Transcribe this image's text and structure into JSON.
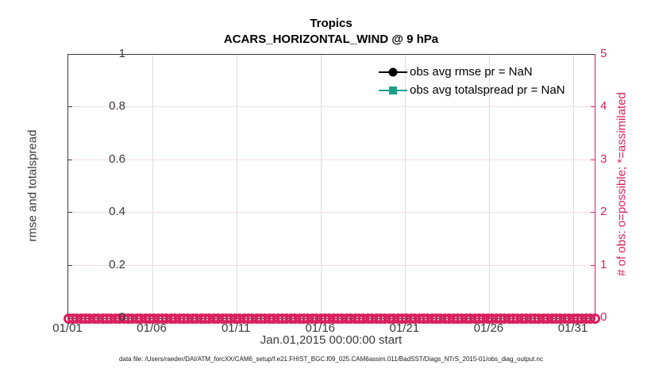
{
  "title": "Tropics",
  "subtitle": "ACARS_HORIZONTAL_WIND @ 9 hPa",
  "axes": {
    "left": {
      "label": "rmse and totalspread",
      "tick_labels": [
        "0",
        "0.2",
        "0.4",
        "0.6",
        "0.8",
        "1"
      ],
      "tick_values": [
        0,
        0.2,
        0.4,
        0.6,
        0.8,
        1
      ],
      "color": "#3a3a3a"
    },
    "right": {
      "label": "# of obs: o=possible; *=assimilated",
      "tick_labels": [
        "0",
        "1",
        "2",
        "3",
        "4",
        "5"
      ],
      "tick_values": [
        0,
        1,
        2,
        3,
        4,
        5
      ],
      "color": "#d9215e"
    },
    "x": {
      "label": "Jan.01,2015 00:00:00 start",
      "tick_labels": [
        "01/01",
        "01/06",
        "01/11",
        "01/16",
        "01/21",
        "01/26",
        "01/31"
      ]
    }
  },
  "legend": [
    {
      "label": "obs avg rmse pr = NaN",
      "color": "#000000",
      "marker": "circle"
    },
    {
      "label": "obs avg totalspread pr = NaN",
      "color": "#1b9e8e",
      "marker": "square"
    }
  ],
  "footer": "data file: /Users/raeder/DAI/ATM_forcXX/CAM6_setup/f.e21.FHIST_BGC.f09_025.CAM6assim.011/BadSST/Diags_NTrS_2015-01/obs_diag_output.nc",
  "chart_data": {
    "type": "line",
    "title": "Tropics",
    "subtitle": "ACARS_HORIZONTAL_WIND @ 9 hPa",
    "xlabel": "Jan.01,2015 00:00:00 start",
    "ylabel_left": "rmse and totalspread",
    "ylabel_right": "# of obs: o=possible; *=assimilated",
    "x_ticks": [
      "01/01",
      "01/06",
      "01/11",
      "01/16",
      "01/21",
      "01/26",
      "01/31"
    ],
    "x_range_days": 31.25,
    "x_tick_interval_days": 5,
    "ylim_left": [
      0,
      1
    ],
    "ylim_right": [
      0,
      5
    ],
    "y_left_ticks": [
      0,
      0.2,
      0.4,
      0.6,
      0.8,
      1
    ],
    "y_right_ticks": [
      0,
      1,
      2,
      3,
      4,
      5
    ],
    "grid": true,
    "legend_position": "upper-right-inside",
    "series": [
      {
        "name": "obs avg rmse pr = NaN",
        "axis": "left",
        "color": "#000000",
        "marker": "filled-circle",
        "values": "all NaN - no line drawn"
      },
      {
        "name": "obs avg totalspread pr = NaN",
        "axis": "left",
        "color": "#1b9e8e",
        "marker": "filled-square",
        "values": "all NaN - no line drawn"
      },
      {
        "name": "# of obs possible (o markers)",
        "axis": "right",
        "color": "#d9215e",
        "marker": "o",
        "constant_value": 0,
        "n_points": 124,
        "note": "dense row of o markers at y=0 spanning 01/01 through end of axis"
      }
    ]
  }
}
